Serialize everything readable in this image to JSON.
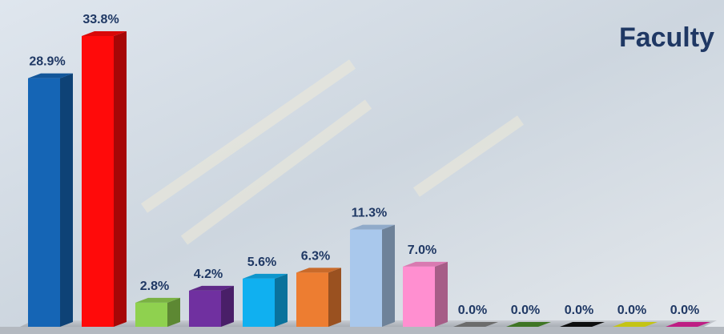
{
  "chart_data": {
    "type": "bar3d",
    "title": "Faculty",
    "values": [
      28.9,
      33.8,
      2.8,
      4.2,
      5.6,
      6.3,
      11.3,
      7.0,
      0.0,
      0.0,
      0.0,
      0.0,
      0.0
    ],
    "value_labels": [
      "28.9%",
      "33.8%",
      "2.8%",
      "4.2%",
      "5.6%",
      "6.3%",
      "11.3%",
      "7.0%",
      "0.0%",
      "0.0%",
      "0.0%",
      "0.0%",
      "0.0%"
    ],
    "colors": [
      "#1565b5",
      "#ff0a0a",
      "#8fd14f",
      "#7030a0",
      "#10b0f0",
      "#ed7d31",
      "#a9c8ec",
      "#ff8fd0",
      "#7f7f7f",
      "#4a8a2a",
      "#111111",
      "#e6e619",
      "#e0239a"
    ]
  }
}
